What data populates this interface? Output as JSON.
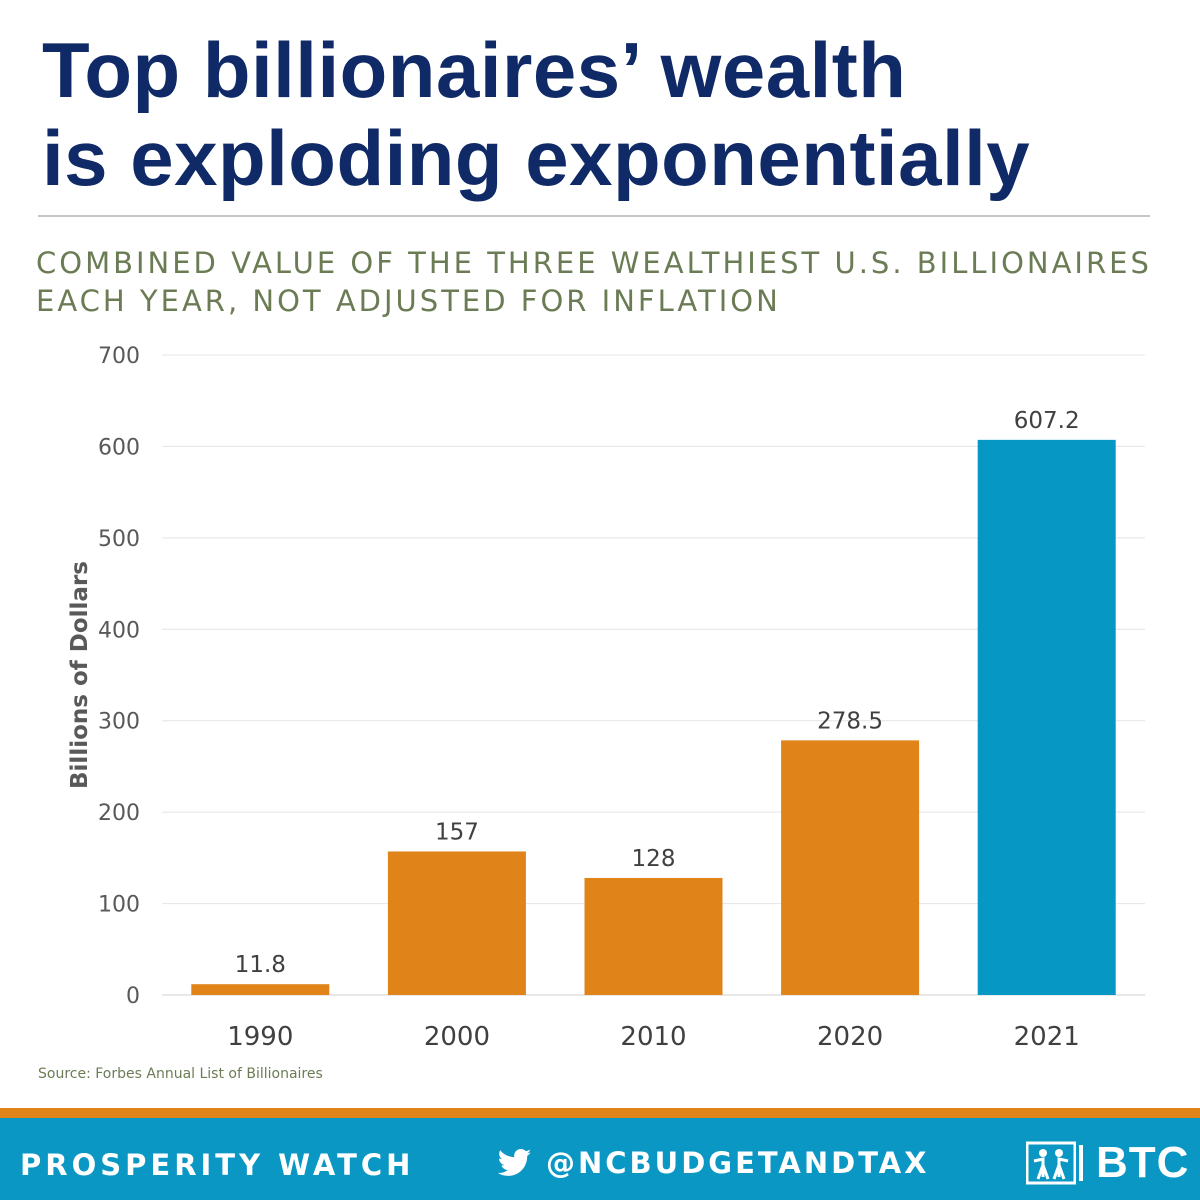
{
  "header": {
    "title_line1": "Top billionaires’ wealth",
    "title_line2": "is exploding exponentially",
    "subtitle_line1": "COMBINED VALUE OF THE THREE WEALTHIEST U.S. BILLIONAIRES",
    "subtitle_line2": "EACH YEAR, NOT ADJUSTED FOR INFLATION"
  },
  "chart_data": {
    "type": "bar",
    "categories": [
      "1990",
      "2000",
      "2010",
      "2020",
      "2021"
    ],
    "values": [
      11.8,
      157,
      128,
      278.5,
      607.2
    ],
    "value_labels": [
      "11.8",
      "157",
      "128",
      "278.5",
      "607.2"
    ],
    "bar_colors": [
      "#e08318",
      "#e08318",
      "#e08318",
      "#e08318",
      "#0797c4"
    ],
    "ylabel": "Billions of Dollars",
    "ylim": [
      0,
      700
    ],
    "yticks": [
      0,
      100,
      200,
      300,
      400,
      500,
      600,
      700
    ],
    "grid": true
  },
  "source": "Source: Forbes Annual List of Billionaires",
  "footer": {
    "left_label": "PROSPERITY WATCH",
    "handle": "@NCBUDGETANDTAX",
    "twitter_icon": "twitter-bird-icon",
    "logo_text": "BTC",
    "logo_icon": "btc-figures-icon",
    "background_color": "#0a97c4",
    "stripe_color": "#e08318"
  }
}
